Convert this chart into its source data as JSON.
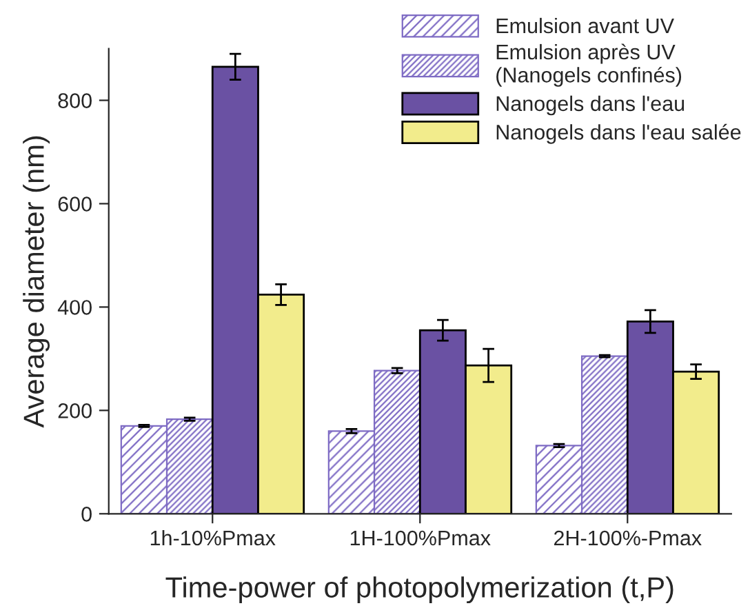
{
  "chart_data": {
    "type": "bar",
    "xlabel": "Time-power of photopolymerization (t,P)",
    "ylabel": "Average diameter (nm)",
    "categories": [
      "1h-10%Pmax",
      "1H-100%Pmax",
      "2H-100%-Pmax"
    ],
    "series": [
      {
        "name": "Emulsion avant UV",
        "color": "#7e6bc4",
        "values": [
          170,
          160,
          132
        ],
        "errors": [
          2,
          4,
          3
        ]
      },
      {
        "name": "Emulsion après UV\n(Nanogels confinés)",
        "color": "#7e6bc4",
        "values": [
          183,
          277,
          305
        ],
        "errors": [
          3,
          5,
          2
        ]
      },
      {
        "name": "Nanogels dans l'eau",
        "color": "#6a51a3",
        "values": [
          865,
          355,
          372
        ],
        "errors": [
          25,
          20,
          22
        ]
      },
      {
        "name": "Nanogels dans l'eau salée",
        "color": "#f2ec8c",
        "values": [
          424,
          287,
          275
        ],
        "errors": [
          20,
          32,
          14
        ]
      }
    ],
    "ylim": [
      0,
      900
    ],
    "yticks": [
      0,
      200,
      400,
      600,
      800
    ],
    "legend": "top right",
    "grid": false
  }
}
